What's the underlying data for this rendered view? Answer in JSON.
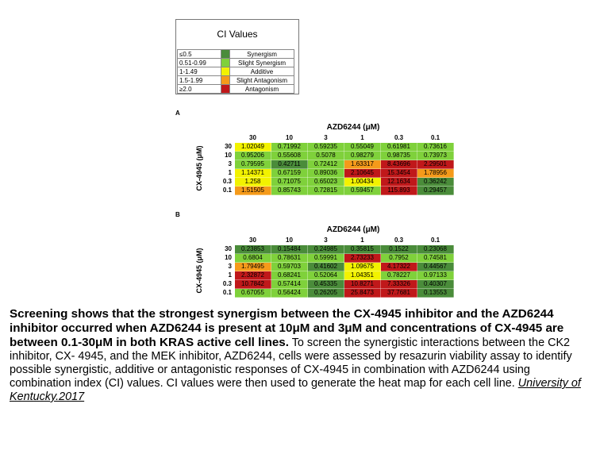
{
  "legend": {
    "title": "CI Values",
    "rows": [
      {
        "range": "≤0.5",
        "label": "Synergism",
        "color": "#4a8c3a"
      },
      {
        "range": "0.51-0.99",
        "label": "Slight Synergism",
        "color": "#7fd13b"
      },
      {
        "range": "1-1.49",
        "label": "Additive",
        "color": "#f2f200"
      },
      {
        "range": "1.5-1.99",
        "label": "Slight Antagonism",
        "color": "#f59a1a"
      },
      {
        "range": "≥2.0",
        "label": "Antagonism",
        "color": "#c0181a"
      }
    ]
  },
  "panels": [
    {
      "label": "A",
      "x_drug": "AZD6244 (μM)",
      "y_drug": "CX-4945 (μM)",
      "col_headers": [
        "30",
        "10",
        "3",
        "1",
        "0.3",
        "0.1"
      ],
      "row_headers": [
        "30",
        "10",
        "3",
        "1",
        "0.3",
        "0.1"
      ],
      "cells": [
        [
          "1.02049",
          "0.71992",
          "0.59235",
          "0.55049",
          "0.61981",
          "0.73616"
        ],
        [
          "0.95206",
          "0.55608",
          "0.5078",
          "0.98279",
          "0.98735",
          "0.73973"
        ],
        [
          "0.79595",
          "0.42711",
          "0.72412",
          "1.63317",
          "8.43696",
          "2.29501"
        ],
        [
          "1.14371",
          "0.67159",
          "0.89036",
          "2.10645",
          "15.3454",
          "1.78956"
        ],
        [
          "1.258",
          "0.71075",
          "0.65023",
          "1.00434",
          "12.1634",
          "0.36242"
        ],
        [
          "1.51505",
          "0.85743",
          "0.72815",
          "0.59457",
          "115.893",
          "0.29457"
        ]
      ]
    },
    {
      "label": "B",
      "x_drug": "AZD6244 (μM)",
      "y_drug": "CX-4945 (μM)",
      "col_headers": [
        "30",
        "10",
        "3",
        "1",
        "0.3",
        "0.1"
      ],
      "row_headers": [
        "30",
        "10",
        "3",
        "1",
        "0.3",
        "0.1"
      ],
      "cells": [
        [
          "0.23853",
          "0.15484",
          "0.24985",
          "0.35815",
          "0.1522",
          "0.23068"
        ],
        [
          "0.6804",
          "0.78631",
          "0.59991",
          "2.73233",
          "0.7952",
          "0.74581"
        ],
        [
          "1.79495",
          "0.59703",
          "0.41602",
          "1.09675",
          "4.17322",
          "0.44567"
        ],
        [
          "2.32872",
          "0.68241",
          "0.52064",
          "1.04351",
          "0.78227",
          "0.97133"
        ],
        [
          "10.7842",
          "0.57414",
          "0.45335",
          "10.8271",
          "7.33326",
          "0.40307"
        ],
        [
          "0.67055",
          "0.56424",
          "0.26205",
          "25.8473",
          "37.7681",
          "0.13553"
        ]
      ]
    }
  ],
  "caption": {
    "bold": "Screening shows that the strongest synergism between the CX-4945 inhibitor and the AZD6244 inhibitor occurred when AZD6244 is present at 10μM and 3μM and concentrations of CX-4945 are between 0.1-30μM in both KRAS active cell lines.",
    "body": "To screen the synergistic interactions between the CK2 inhibitor, CX- 4945, and the MEK inhibitor, AZD6244, cells were assessed by resazurin viability assay to identify possible synergistic, additive or antagonistic responses of CX-4945 in combination with AZD6244 using combination index (CI) values. CI values were then used to generate the heat map for each cell line.",
    "citation": "University of Kentucky.2017"
  }
}
